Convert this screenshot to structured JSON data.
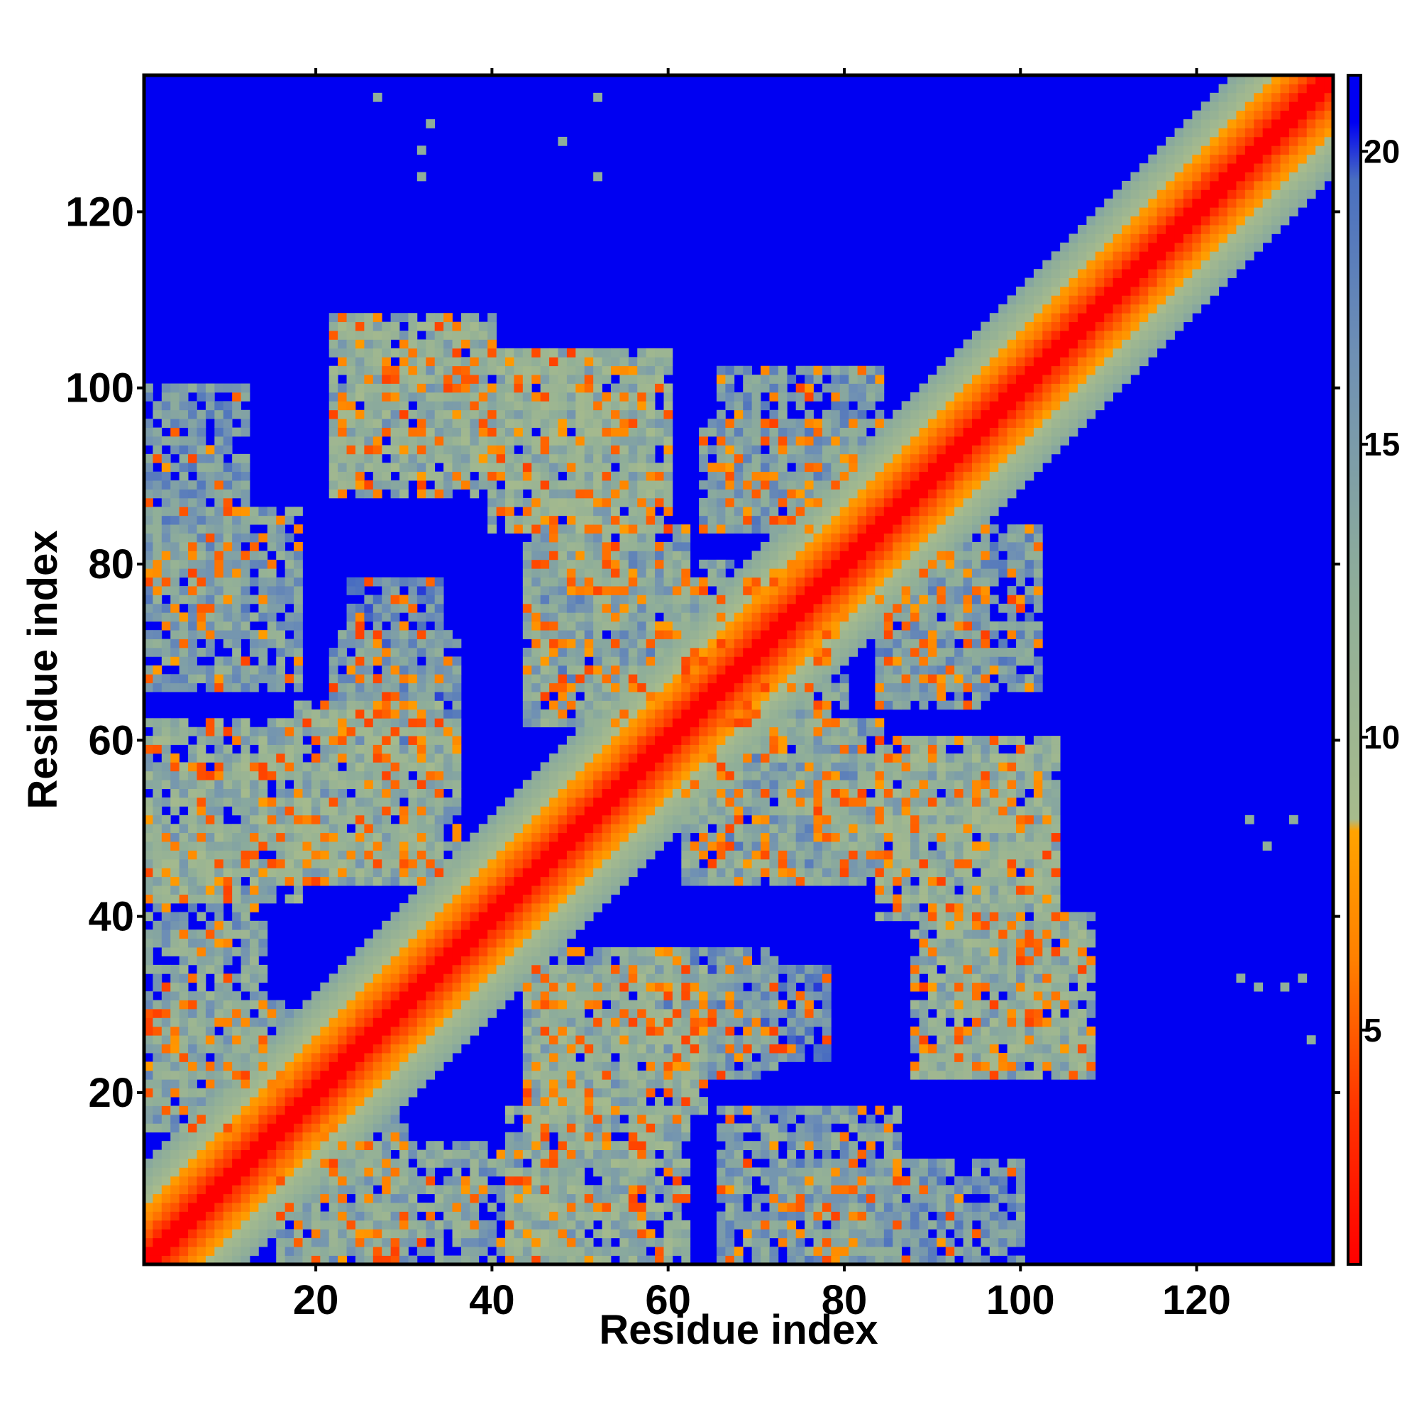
{
  "chart_data": {
    "type": "heatmap",
    "title": "",
    "xlabel": "Residue index",
    "ylabel": "Residue index",
    "n_residues": 135,
    "xlim": [
      1,
      135
    ],
    "ylim": [
      1,
      135
    ],
    "x_ticks": [
      "20",
      "40",
      "60",
      "80",
      "100",
      "120"
    ],
    "y_ticks": [
      "20",
      "40",
      "60",
      "80",
      "100",
      "120"
    ],
    "colorbar": {
      "range": [
        1,
        21.3
      ],
      "ticks": [
        "5",
        "10",
        "15",
        "20"
      ],
      "stops": [
        {
          "v": 1,
          "color": "#ff0000"
        },
        {
          "v": 3.6,
          "color": "#ff3300"
        },
        {
          "v": 6.2,
          "color": "#ff8000"
        },
        {
          "v": 8.4,
          "color": "#ffa300"
        },
        {
          "v": 8.6,
          "color": "#a7bb8c"
        },
        {
          "v": 12.5,
          "color": "#8fae99"
        },
        {
          "v": 16.5,
          "color": "#6f90b4"
        },
        {
          "v": 19.5,
          "color": "#4a6fc0"
        },
        {
          "v": 20.5,
          "color": "#0000f2"
        }
      ]
    },
    "diagonal": {
      "width_cutoff": 11,
      "max_value": 21.3
    },
    "contact_regions": [
      {
        "x": [
          1,
          12
        ],
        "y": [
          74,
          100
        ],
        "value": 15
      },
      {
        "x": [
          1,
          18
        ],
        "y": [
          42,
          62
        ],
        "value": 12
      },
      {
        "x": [
          1,
          14
        ],
        "y": [
          20,
          38
        ],
        "value": 13
      },
      {
        "x": [
          16,
          30
        ],
        "y": [
          1,
          18
        ],
        "value": 14
      },
      {
        "x": [
          18,
          34
        ],
        "y": [
          44,
          64
        ],
        "value": 12
      },
      {
        "x": [
          24,
          34
        ],
        "y": [
          62,
          78
        ],
        "value": 16
      },
      {
        "x": [
          22,
          40
        ],
        "y": [
          88,
          107
        ],
        "value": 12
      },
      {
        "x": [
          42,
          58
        ],
        "y": [
          84,
          104
        ],
        "value": 12
      },
      {
        "x": [
          44,
          62
        ],
        "y": [
          66,
          82
        ],
        "value": 15
      },
      {
        "x": [
          36,
          50
        ],
        "y": [
          1,
          14
        ],
        "value": 14
      },
      {
        "x": [
          44,
          62
        ],
        "y": [
          16,
          36
        ],
        "value": 13
      },
      {
        "x": [
          64,
          78
        ],
        "y": [
          62,
          80
        ],
        "value": 14
      },
      {
        "x": [
          66,
          84
        ],
        "y": [
          84,
          102
        ],
        "value": 15
      },
      {
        "x": [
          62,
          84
        ],
        "y": [
          44,
          62
        ],
        "value": 13
      },
      {
        "x": [
          84,
          104
        ],
        "y": [
          40,
          60
        ],
        "value": 12
      },
      {
        "x": [
          90,
          108
        ],
        "y": [
          22,
          40
        ],
        "value": 13
      },
      {
        "x": [
          66,
          86
        ],
        "y": [
          1,
          18
        ],
        "value": 14
      },
      {
        "x": [
          84,
          96
        ],
        "y": [
          64,
          82
        ],
        "value": 15
      },
      {
        "x": [
          60,
          72
        ],
        "y": [
          22,
          36
        ],
        "value": 15
      }
    ],
    "isolated_cells": [
      {
        "x": 27,
        "y": 133
      },
      {
        "x": 33,
        "y": 130
      },
      {
        "x": 32,
        "y": 127
      },
      {
        "x": 32,
        "y": 124
      },
      {
        "x": 48,
        "y": 128
      },
      {
        "x": 52,
        "y": 133
      },
      {
        "x": 52,
        "y": 124
      },
      {
        "x": 126,
        "y": 51
      },
      {
        "x": 128,
        "y": 48
      },
      {
        "x": 131,
        "y": 51
      },
      {
        "x": 125,
        "y": 33
      },
      {
        "x": 127,
        "y": 32
      },
      {
        "x": 130,
        "y": 32
      },
      {
        "x": 132,
        "y": 33
      },
      {
        "x": 133,
        "y": 26
      }
    ]
  }
}
